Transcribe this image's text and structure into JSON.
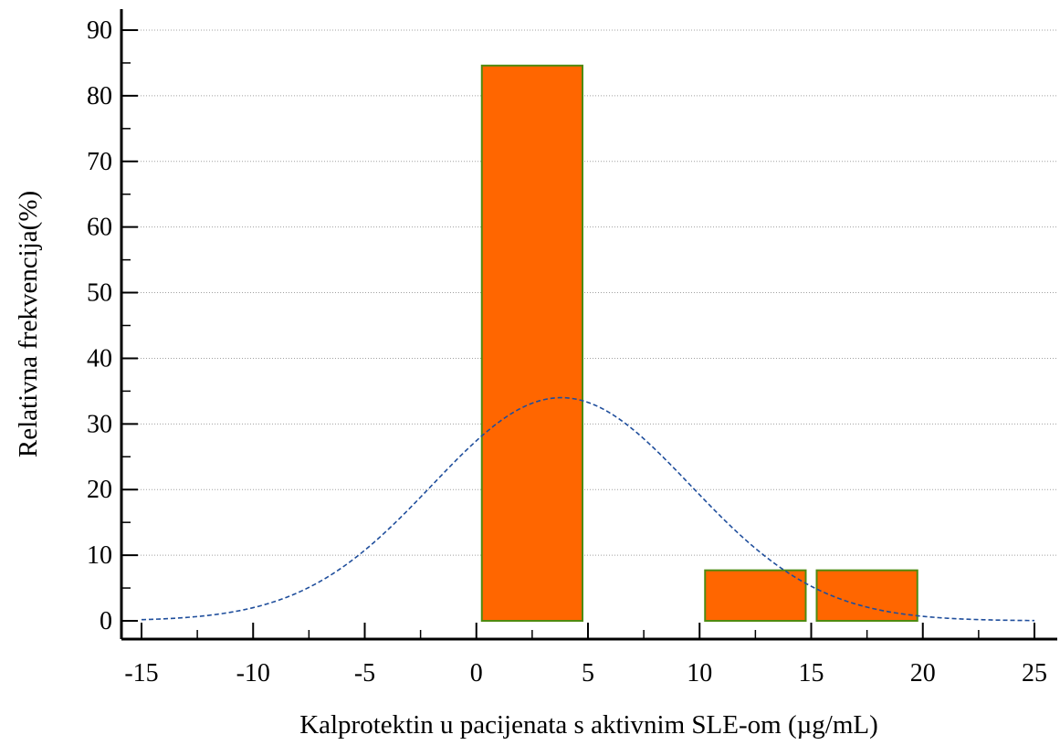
{
  "chart_data": {
    "type": "bar",
    "title": "",
    "xlabel": "Kalprotektin u pacijenata s aktivnim SLE-om (µg/mL)",
    "ylabel": "Relativna frekvencija(%)",
    "xlim": [
      -15,
      25
    ],
    "ylim": [
      0,
      90
    ],
    "x_ticks": [
      -15,
      -10,
      -5,
      0,
      5,
      10,
      15,
      20,
      25
    ],
    "y_ticks": [
      0,
      10,
      20,
      30,
      40,
      50,
      60,
      70,
      80,
      90
    ],
    "x_tick_labels": [
      "-15",
      "-10",
      "-5",
      "0",
      "5",
      "10",
      "15",
      "20",
      "25"
    ],
    "y_tick_labels": [
      "0",
      "10",
      "20",
      "30",
      "40",
      "50",
      "60",
      "70",
      "80",
      "90"
    ],
    "grid": "horizontal dotted",
    "bars": [
      {
        "x_start": 0,
        "x_end": 5,
        "value": 84.6
      },
      {
        "x_start": 10,
        "x_end": 15,
        "value": 7.7
      },
      {
        "x_start": 15,
        "x_end": 20,
        "value": 7.7
      }
    ],
    "curve": {
      "kind": "normal",
      "mean": 3.8,
      "sd": 5.8,
      "peak": 34,
      "x_range": [
        -15,
        25
      ]
    },
    "colors": {
      "bar_fill": "#ff6600",
      "bar_stroke": "#4f8a10",
      "curve": "#1f4e9c",
      "grid": "#a0a0a0",
      "axis": "#000000"
    }
  }
}
